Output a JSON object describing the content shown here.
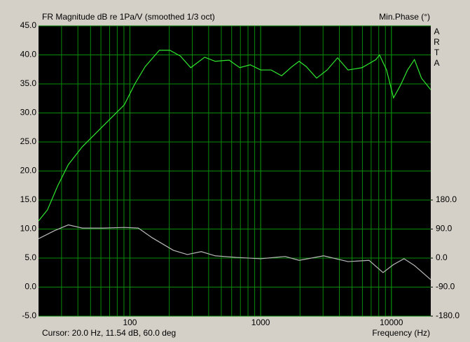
{
  "chart_data": {
    "type": "line",
    "title": "FR Magnitude dB re 1Pa/V (smoothed 1/3 oct)",
    "y2_title": "Min.Phase (°)",
    "brand": "ARTA",
    "status": "Cursor: 20.0 Hz, 11.54 dB, 60.0 deg",
    "x_label": "Frequency (Hz)",
    "xscale": "log",
    "xlim": [
      20,
      20000
    ],
    "xticks": [
      100,
      1000,
      10000
    ],
    "ylim": [
      -5,
      45
    ],
    "yticks": [
      {
        "value": -5,
        "label": "-5.0"
      },
      {
        "value": 0,
        "label": "0.0"
      },
      {
        "value": 5,
        "label": "5.0"
      },
      {
        "value": 10,
        "label": "10.0"
      },
      {
        "value": 15,
        "label": "15.0"
      },
      {
        "value": 20,
        "label": "20.0"
      },
      {
        "value": 25,
        "label": "25.0"
      },
      {
        "value": 30,
        "label": "30.0"
      },
      {
        "value": 35,
        "label": "35.0"
      },
      {
        "value": 40,
        "label": "40.0"
      },
      {
        "value": 45,
        "label": "45.0"
      }
    ],
    "y2lim": [
      -180,
      720
    ],
    "y2ticks": [
      {
        "value": -180,
        "label": "-180.0"
      },
      {
        "value": -90,
        "label": "-90.0"
      },
      {
        "value": 0,
        "label": "0.0"
      },
      {
        "value": 90,
        "label": "90.0"
      },
      {
        "value": 180,
        "label": "180.0"
      }
    ],
    "grid": true,
    "series": [
      {
        "color": "#2ee82e",
        "x": [
          20,
          23.4,
          28.1,
          33.8,
          43.3,
          55.4,
          70.8,
          90.6,
          109,
          131,
          168,
          202,
          243,
          292,
          373,
          449,
          574,
          692,
          832,
          1000,
          1202,
          1446,
          1740,
          1968,
          2228,
          2678,
          3221,
          3873,
          4659,
          5957,
          7621,
          8110,
          9180,
          10380,
          11750,
          13280,
          15000,
          16980,
          20000
        ],
        "values": [
          11.4,
          13.3,
          17.5,
          21.1,
          24.2,
          26.6,
          29.0,
          31.4,
          35.0,
          38.0,
          40.8,
          40.8,
          39.8,
          37.8,
          39.6,
          38.9,
          39.1,
          37.8,
          38.3,
          37.4,
          37.4,
          36.4,
          38.0,
          38.9,
          38.0,
          36.0,
          37.4,
          39.5,
          37.4,
          37.8,
          39.2,
          40.0,
          37.4,
          32.6,
          34.8,
          37.4,
          39.2,
          36.0,
          34.0
        ]
      },
      {
        "color": "#b8b8b8",
        "axis": "y2",
        "x": [
          20,
          26.5,
          33.8,
          43.3,
          62.6,
          90.6,
          116,
          148,
          215,
          275,
          351,
          449,
          650,
          1000,
          1538,
          1968,
          3030,
          4659,
          6743,
          8630,
          10380,
          12480,
          15000,
          20000
        ],
        "values": [
          60,
          85,
          103,
          93,
          93,
          95,
          93,
          63,
          24,
          11,
          20,
          7,
          2,
          -2,
          5,
          -7,
          7,
          -11,
          -7,
          -45,
          -20,
          -2,
          -23,
          -67
        ]
      }
    ]
  }
}
